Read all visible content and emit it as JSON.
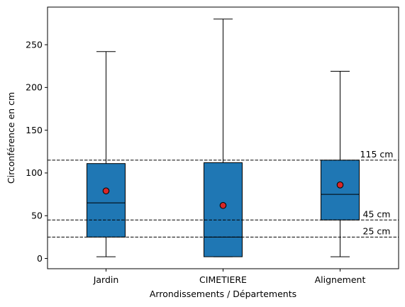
{
  "chart_data": {
    "type": "box",
    "title": "",
    "xlabel": "Arrondissements / Départements",
    "ylabel": "Circonférence en cm",
    "categories": [
      "Jardin",
      "CIMETIERE",
      "Alignement"
    ],
    "boxes": [
      {
        "category": "Jardin",
        "whisker_low": 2,
        "q1": 25,
        "median": 65,
        "q3": 111,
        "whisker_high": 242,
        "mean": 79
      },
      {
        "category": "CIMETIERE",
        "whisker_low": 2,
        "q1": 2,
        "median": 25,
        "q3": 112,
        "whisker_high": 280,
        "mean": 62
      },
      {
        "category": "Alignement",
        "whisker_low": 2,
        "q1": 45,
        "median": 75,
        "q3": 115,
        "whisker_high": 219,
        "mean": 86
      }
    ],
    "reference_lines": [
      {
        "y": 115,
        "label": "115 cm"
      },
      {
        "y": 45,
        "label": "45 cm"
      },
      {
        "y": 25,
        "label": "25 cm"
      }
    ],
    "ylim": [
      -12,
      294
    ],
    "yticks": [
      0,
      50,
      100,
      150,
      200,
      250
    ],
    "grid": false,
    "colors": {
      "box_fill": "#1f77b4",
      "box_edge": "#000000",
      "mean_marker": "#d62728",
      "reference_line": "#000000"
    }
  }
}
